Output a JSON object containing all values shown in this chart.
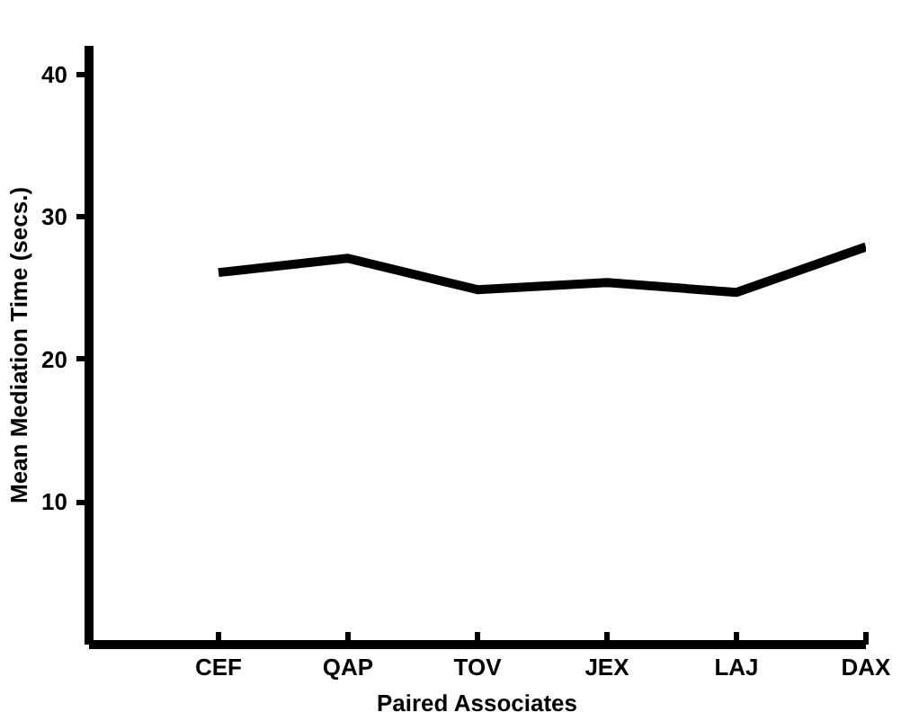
{
  "chart_data": {
    "type": "line",
    "xlabel": "Paired Associates",
    "ylabel": "Mean Mediation Time (secs.)",
    "categories": [
      "CEF",
      "QAP",
      "TOV",
      "JEX",
      "LAJ",
      "DAX"
    ],
    "series": [
      {
        "color": "#000000",
        "values": [
          26.1,
          27.1,
          24.9,
          25.4,
          24.7,
          27.9
        ]
      }
    ],
    "ylim": [
      0,
      42
    ],
    "yticks": [
      10,
      20,
      30,
      40
    ],
    "line_style": "solid"
  }
}
